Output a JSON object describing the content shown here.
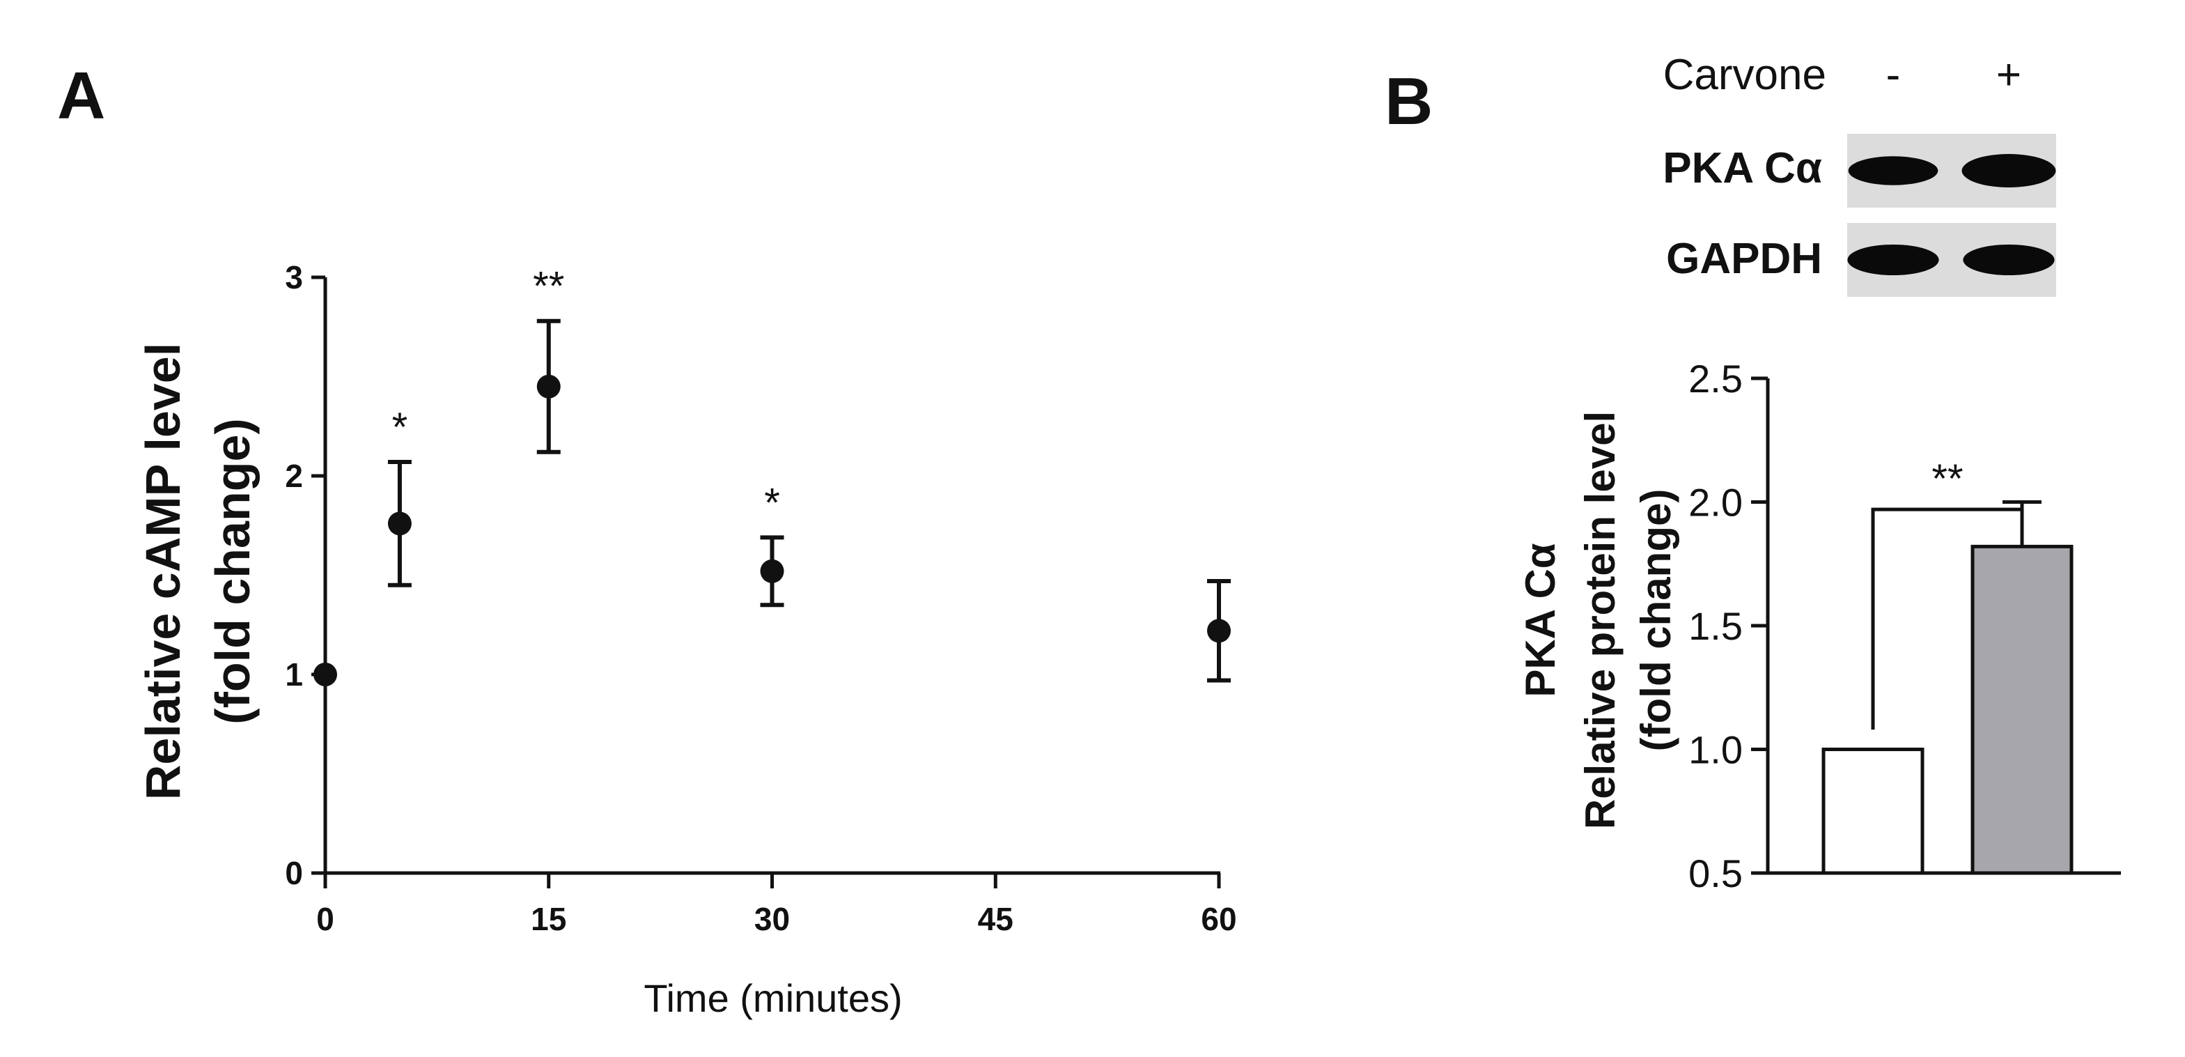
{
  "chart_data": [
    {
      "panel": "A",
      "type": "scatter",
      "xlabel": "Time (minutes)",
      "ylabel": [
        "Relative cAMP level",
        "(fold change)"
      ],
      "xlim": [
        0,
        60
      ],
      "ylim": [
        0,
        3
      ],
      "xticks": [
        0,
        15,
        30,
        45,
        60
      ],
      "yticks": [
        0,
        1,
        2,
        3
      ],
      "points": [
        {
          "x": 0,
          "y": 1.0,
          "err": 0,
          "sig": ""
        },
        {
          "x": 5,
          "y": 1.76,
          "err": 0.31,
          "sig": "*"
        },
        {
          "x": 15,
          "y": 2.45,
          "err": 0.33,
          "sig": "**"
        },
        {
          "x": 30,
          "y": 1.52,
          "err": 0.17,
          "sig": "*"
        },
        {
          "x": 60,
          "y": 1.22,
          "err": 0.25,
          "sig": ""
        }
      ]
    },
    {
      "panel": "B",
      "type": "bar",
      "blot": {
        "treatment_label": "Carvone",
        "lanes": [
          "-",
          "+"
        ],
        "rows": [
          {
            "label": "PKA Cα",
            "band_intensity": [
              0.75,
              1.0
            ]
          },
          {
            "label": "GAPDH",
            "band_intensity": [
              0.85,
              0.85
            ]
          }
        ]
      },
      "ylabel": [
        "PKA Cα",
        "Relative protein level",
        "(fold change)"
      ],
      "ylim": [
        0.5,
        2.5
      ],
      "yticks": [
        "0.5",
        "1.0",
        "1.5",
        "2.0",
        "2.5"
      ],
      "categories": [
        "-",
        "+"
      ],
      "values": [
        1.0,
        1.82
      ],
      "errors": [
        0,
        0.18
      ],
      "bar_colors": [
        "#ffffff",
        "#a6a6ab"
      ],
      "significance": "**"
    }
  ]
}
